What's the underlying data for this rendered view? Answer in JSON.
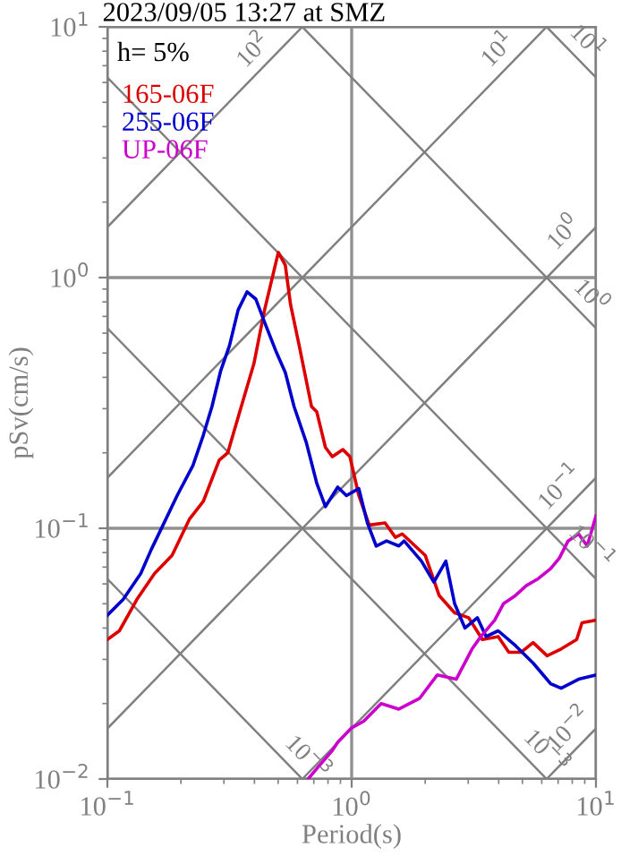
{
  "chart_data": {
    "type": "line",
    "title": "2023/09/05 13:27 at SMZ",
    "xlabel": "Period(s)",
    "ylabel": "pSv(cm/s)",
    "log": "xy",
    "grid": true,
    "legend": "top left",
    "line_style": "solid",
    "marker": "none",
    "xlim": [
      0.1,
      10
    ],
    "ylim": [
      0.01,
      10
    ],
    "xticks": [
      {
        "value": 0.1,
        "label": "10$^{−1}$"
      },
      {
        "value": 1,
        "label": "10$^{0}$"
      },
      {
        "value": 10,
        "label": "10$^{1}$"
      }
    ],
    "yticks": [
      {
        "value": 0.01,
        "label": "10$^{−2}$"
      },
      {
        "value": 0.1,
        "label": "10$^{−1}$"
      },
      {
        "value": 1,
        "label": "10$^{0}$"
      },
      {
        "value": 10,
        "label": "10$^{1}$"
      }
    ],
    "annotations": [
      "h= 5%",
      {
        "text": "10$^{2}$",
        "x": 0.45,
        "y": 7.16
      },
      {
        "text": "10$^{1}$",
        "x": 4.52,
        "y": 7.19
      },
      {
        "text": "10$^{1}$",
        "x": 8.1,
        "y": 7.76
      },
      {
        "text": "10$^{0}$",
        "x": 8.4,
        "y": 1.34
      },
      {
        "text": "10$^{0}$",
        "x": 8.4,
        "y": 0.748
      },
      {
        "text": "10$^{−1}$",
        "x": 8.1,
        "y": 0.129
      },
      {
        "text": "10$^{−1}$",
        "x": 8.4,
        "y": 0.0748
      },
      {
        "text": "10$^{−2}$",
        "x": 8.8,
        "y": 0.014
      },
      {
        "text": "10$^{−3}$",
        "x": 5.5,
        "y": 0.0114
      },
      {
        "text": "10$^{−3}$",
        "x": 0.58,
        "y": 0.0108
      }
    ],
    "series": [
      {
        "color": "#808080",
        "x": [
          0.1,
          0.628
        ],
        "values": [
          1.59,
          10
        ]
      },
      {
        "color": "#808080",
        "x": [
          0.1,
          6.28
        ],
        "values": [
          0.159,
          10
        ]
      },
      {
        "color": "#808080",
        "x": [
          0.1,
          10
        ],
        "values": [
          0.0159,
          1.59
        ]
      },
      {
        "color": "#808080",
        "x": [
          0.628,
          10
        ],
        "values": [
          0.01,
          0.159
        ]
      },
      {
        "color": "#808080",
        "x": [
          6.28,
          10
        ],
        "values": [
          0.01,
          0.0159
        ]
      },
      {
        "color": "#808080",
        "x": [
          6.28,
          10
        ],
        "values": [
          10,
          6.28
        ]
      },
      {
        "color": "#808080",
        "x": [
          0.628,
          10
        ],
        "values": [
          10,
          0.628
        ]
      },
      {
        "color": "#808080",
        "x": [
          0.1,
          10
        ],
        "values": [
          6.28,
          0.0628
        ]
      },
      {
        "color": "#808080",
        "x": [
          0.1,
          6.28
        ],
        "values": [
          0.628,
          0.01
        ]
      },
      {
        "color": "#808080",
        "x": [
          0.1,
          0.628
        ],
        "values": [
          0.0628,
          0.01
        ]
      },
      {
        "name": "165-06F",
        "color": "#dd0000",
        "x": [
          0.1,
          0.112,
          0.132,
          0.156,
          0.184,
          0.217,
          0.247,
          0.287,
          0.311,
          0.343,
          0.398,
          0.44,
          0.501,
          0.535,
          0.562,
          0.61,
          0.685,
          0.72,
          0.781,
          0.834,
          0.921,
          0.984,
          1.07,
          1.18,
          1.37,
          1.51,
          1.61,
          2.0,
          2.28,
          2.64,
          3.01,
          3.43,
          3.98,
          4.4,
          4.93,
          5.53,
          6.31,
          7.2,
          8.34,
          8.77,
          10
        ],
        "values": [
          0.036,
          0.039,
          0.052,
          0.066,
          0.078,
          0.109,
          0.128,
          0.187,
          0.2,
          0.277,
          0.454,
          0.743,
          1.26,
          1.12,
          0.782,
          0.535,
          0.306,
          0.291,
          0.21,
          0.193,
          0.206,
          0.193,
          0.135,
          0.103,
          0.105,
          0.092,
          0.095,
          0.078,
          0.054,
          0.046,
          0.044,
          0.036,
          0.037,
          0.032,
          0.032,
          0.035,
          0.031,
          0.033,
          0.036,
          0.042,
          0.043
        ]
      },
      {
        "name": "255-06F",
        "color": "#0000cc",
        "x": [
          0.1,
          0.116,
          0.137,
          0.151,
          0.169,
          0.193,
          0.224,
          0.247,
          0.268,
          0.291,
          0.316,
          0.343,
          0.373,
          0.405,
          0.44,
          0.493,
          0.535,
          0.581,
          0.652,
          0.72,
          0.781,
          0.877,
          0.952,
          1.07,
          1.16,
          1.26,
          1.39,
          1.56,
          1.64,
          1.93,
          2.17,
          2.43,
          2.64,
          2.91,
          3.27,
          3.55,
          3.98,
          4.69,
          5.53,
          6.52,
          7.2,
          8.49,
          10
        ],
        "values": [
          0.045,
          0.052,
          0.066,
          0.082,
          0.103,
          0.135,
          0.178,
          0.235,
          0.306,
          0.425,
          0.535,
          0.743,
          0.877,
          0.821,
          0.663,
          0.501,
          0.418,
          0.306,
          0.22,
          0.151,
          0.122,
          0.146,
          0.135,
          0.144,
          0.105,
          0.085,
          0.089,
          0.085,
          0.089,
          0.074,
          0.061,
          0.074,
          0.05,
          0.04,
          0.044,
          0.037,
          0.039,
          0.034,
          0.029,
          0.024,
          0.023,
          0.025,
          0.026
        ]
      },
      {
        "name": "UP-06F",
        "color": "#cc00cc",
        "x": [
          0.663,
          0.72,
          0.834,
          0.877,
          1.0,
          1.12,
          1.32,
          1.56,
          1.9,
          2.24,
          2.68,
          3.11,
          3.38,
          3.85,
          4.18,
          4.69,
          5.18,
          5.81,
          6.52,
          7.08,
          7.69,
          8.49,
          9.21,
          10
        ],
        "values": [
          0.01,
          0.011,
          0.013,
          0.014,
          0.016,
          0.017,
          0.02,
          0.019,
          0.021,
          0.026,
          0.025,
          0.033,
          0.037,
          0.043,
          0.05,
          0.054,
          0.059,
          0.063,
          0.069,
          0.076,
          0.089,
          0.095,
          0.085,
          0.112
        ]
      }
    ]
  }
}
